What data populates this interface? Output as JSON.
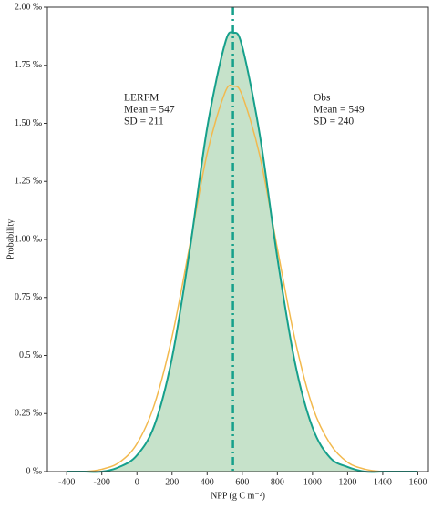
{
  "chart_data": {
    "type": "line",
    "x_label": "NPP (g C m⁻²)",
    "y_label": "Probability",
    "x": [
      -400,
      -300,
      -200,
      -100,
      0,
      100,
      200,
      300,
      400,
      500,
      550,
      600,
      700,
      800,
      900,
      1000,
      1100,
      1200,
      1300,
      1400,
      1500,
      1600
    ],
    "series": [
      {
        "name": "LERFM",
        "color": "#16a08b",
        "fill": "#b3d8b8",
        "mean": 547,
        "label_lines": [
          "Mean = 547",
          "SD = 211"
        ],
        "values": [
          0.0,
          0.0,
          0.0,
          0.02,
          0.07,
          0.2,
          0.49,
          0.95,
          1.48,
          1.84,
          1.89,
          1.83,
          1.45,
          0.92,
          0.47,
          0.19,
          0.06,
          0.02,
          0.0,
          0.0,
          0.0,
          0.0
        ]
      },
      {
        "name": "Obs",
        "color": "#f2b94e",
        "label_lines": [
          "Mean = 549",
          "SD = 240"
        ],
        "values": [
          0.0,
          0.0,
          0.01,
          0.04,
          0.12,
          0.29,
          0.58,
          0.97,
          1.37,
          1.63,
          1.66,
          1.62,
          1.36,
          0.96,
          0.57,
          0.28,
          0.12,
          0.04,
          0.01,
          0.0,
          0.0,
          0.0
        ]
      }
    ],
    "xlim": [
      -510,
      1660
    ],
    "ylim": [
      0,
      2.0
    ],
    "xticks": [
      -400,
      -200,
      0,
      200,
      400,
      600,
      800,
      1000,
      1200,
      1400,
      1600
    ],
    "yticks": [
      {
        "value": 0,
        "label": "0 ‰"
      },
      {
        "value": 0.25,
        "label": "0.25 ‰"
      },
      {
        "value": 0.5,
        "label": "0.5 ‰"
      },
      {
        "value": 0.75,
        "label": "0.75 ‰"
      },
      {
        "value": 1.0,
        "label": "1.00 ‰"
      },
      {
        "value": 1.25,
        "label": "1.25 ‰"
      },
      {
        "value": 1.5,
        "label": "1.50 ‰"
      },
      {
        "value": 1.75,
        "label": "1.75 ‰"
      },
      {
        "value": 2.0,
        "label": "2.00 ‰"
      }
    ]
  }
}
